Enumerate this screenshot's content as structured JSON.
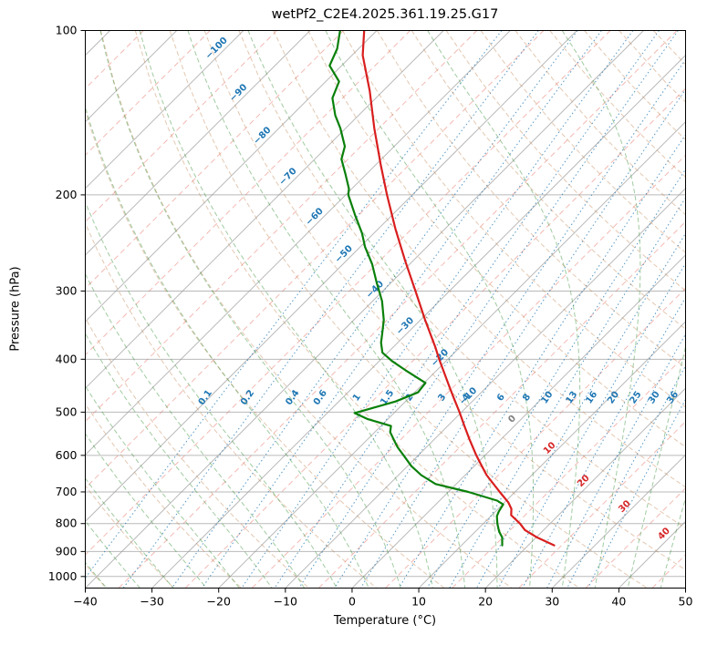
{
  "title": "wetPf2_C2E4.2025.361.19.25.G17",
  "axes": {
    "xlabel": "Temperature (°C)",
    "ylabel": "Pressure (hPa)",
    "x_ticks": [
      -40,
      -30,
      -20,
      -10,
      0,
      10,
      20,
      30,
      40,
      50
    ],
    "y_ticks": [
      100,
      200,
      300,
      400,
      500,
      600,
      700,
      800,
      900,
      1000
    ]
  },
  "colors": {
    "temperature_line": "#d91e1e",
    "dewpoint_line": "#0a800a",
    "grid": "#9c9c9c",
    "isotherm_dashed": "#e8756a",
    "mixing_ratio": "#1f77b4",
    "dry_adiabat": "#c08552",
    "moist_adiabat": "#2f8b2f",
    "label_negative": "#1f77b4",
    "label_zero": "#7f7f7f",
    "label_positive": "#d62728"
  },
  "chart_data": {
    "type": "line",
    "chart_kind": "skew-t-log-p sounding",
    "title": "wetPf2_C2E4.2025.361.19.25.G17",
    "xlabel": "Temperature (°C)",
    "ylabel": "Pressure (hPa)",
    "xlim": [
      -40,
      50
    ],
    "plim": [
      100,
      1050
    ],
    "skew_degrees": 45,
    "y_scale": "log",
    "grid": true,
    "series": [
      {
        "name": "temperature",
        "color": "#d91e1e",
        "units": {
          "x": "degC",
          "y": "hPa"
        },
        "points_p_t": [
          [
            100,
            -81.9
          ],
          [
            111,
            -78.4
          ],
          [
            129,
            -72.0
          ],
          [
            151,
            -65.7
          ],
          [
            176,
            -59.3
          ],
          [
            200,
            -53.8
          ],
          [
            231,
            -47.4
          ],
          [
            264,
            -41.2
          ],
          [
            300,
            -35.1
          ],
          [
            339,
            -29.3
          ],
          [
            380,
            -23.7
          ],
          [
            400,
            -21.3
          ],
          [
            444,
            -16.2
          ],
          [
            470,
            -13.4
          ],
          [
            500,
            -10.3
          ],
          [
            530,
            -7.5
          ],
          [
            560,
            -4.8
          ],
          [
            600,
            -1.3
          ],
          [
            625,
            0.9
          ],
          [
            652,
            3.2
          ],
          [
            675,
            5.4
          ],
          [
            700,
            7.7
          ],
          [
            732,
            10.6
          ],
          [
            752,
            12.0
          ],
          [
            772,
            12.9
          ],
          [
            800,
            15.5
          ],
          [
            822,
            17.2
          ],
          [
            847,
            20.0
          ],
          [
            877,
            23.9
          ]
        ]
      },
      {
        "name": "dewpoint",
        "color": "#0a800a",
        "units": {
          "x": "degC",
          "y": "hPa"
        },
        "points_p_t": [
          [
            100,
            -85.5
          ],
          [
            108,
            -83.2
          ],
          [
            116,
            -81.8
          ],
          [
            124,
            -78.0
          ],
          [
            133,
            -76.5
          ],
          [
            143,
            -73.5
          ],
          [
            151,
            -70.8
          ],
          [
            163,
            -67.4
          ],
          [
            172,
            -66.0
          ],
          [
            183,
            -63.2
          ],
          [
            195,
            -60.4
          ],
          [
            200,
            -59.6
          ],
          [
            218,
            -55.5
          ],
          [
            235,
            -51.8
          ],
          [
            249,
            -49.3
          ],
          [
            268,
            -45.6
          ],
          [
            290,
            -42.1
          ],
          [
            313,
            -38.6
          ],
          [
            339,
            -35.5
          ],
          [
            360,
            -33.6
          ],
          [
            373,
            -32.5
          ],
          [
            389,
            -30.8
          ],
          [
            403,
            -28.1
          ],
          [
            419,
            -24.7
          ],
          [
            442,
            -19.8
          ],
          [
            460,
            -19.5
          ],
          [
            478,
            -21.5
          ],
          [
            502,
            -25.9
          ],
          [
            515,
            -23.0
          ],
          [
            530,
            -18.5
          ],
          [
            544,
            -17.7
          ],
          [
            564,
            -15.8
          ],
          [
            580,
            -14.3
          ],
          [
            600,
            -12.2
          ],
          [
            628,
            -9.4
          ],
          [
            652,
            -6.6
          ],
          [
            677,
            -3.1
          ],
          [
            700,
            3.0
          ],
          [
            726,
            8.6
          ],
          [
            738,
            10.1
          ],
          [
            760,
            10.5
          ],
          [
            775,
            10.9
          ],
          [
            800,
            12.1
          ],
          [
            828,
            13.6
          ],
          [
            848,
            14.9
          ],
          [
            877,
            16.1
          ]
        ]
      }
    ],
    "background_lines": {
      "isotherms": {
        "min": -120,
        "max": 50,
        "step": 10
      },
      "isotherm_dashed": {
        "min": -115,
        "max": 45,
        "step": 10
      },
      "isotherm_labels": [
        -100,
        -90,
        -80,
        -70,
        -60,
        -50,
        -40,
        -30,
        -20,
        -10,
        0,
        10,
        20,
        30,
        40
      ],
      "mixing_ratio_g_per_kg": [
        0.1,
        0.2,
        0.4,
        0.6,
        1,
        1.5,
        2,
        3,
        4,
        6,
        8,
        10,
        13,
        16,
        20,
        25,
        30,
        36
      ],
      "dry_adiabats_theta_k": {
        "start": 233,
        "stop": 453,
        "step": 10
      },
      "moist_adiabats_start_c": {
        "start": -40,
        "stop": 45,
        "step": 5
      }
    }
  }
}
